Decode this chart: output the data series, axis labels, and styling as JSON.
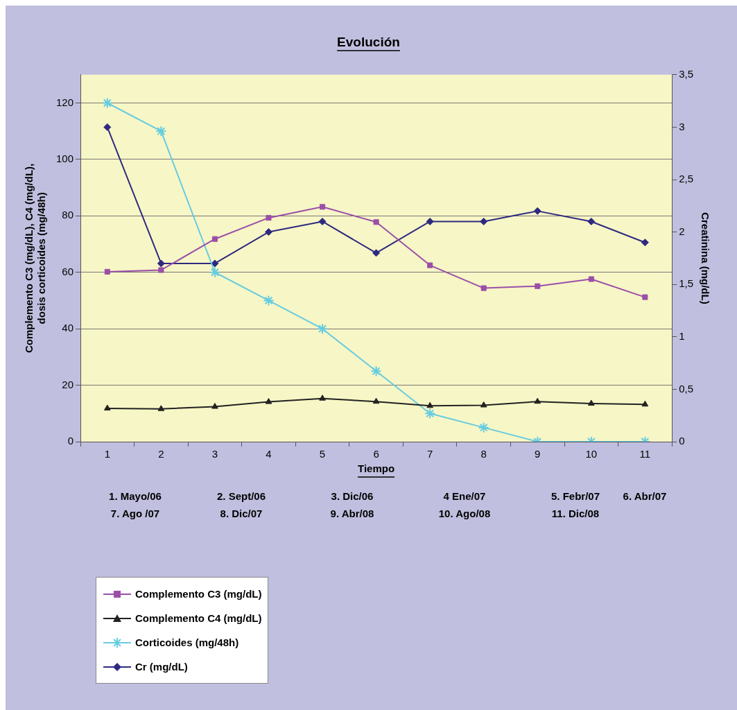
{
  "chart_data": {
    "type": "line",
    "title": "Evolución",
    "xlabel": "Tiempo",
    "ylabel": "Complemento C3 (mg/dL), C4 (mg/dL), dosis corticoides (mg/48h)",
    "y2label": "Creatinina (mg/dL)",
    "categories": [
      "1",
      "2",
      "3",
      "4",
      "5",
      "6",
      "7",
      "8",
      "9",
      "10",
      "11"
    ],
    "series": [
      {
        "name": "Complemento C3 (mg/dL)",
        "color": "#9b4fa8",
        "marker": "square",
        "values": [
          60.2,
          60.8,
          71.8,
          79.3,
          83.2,
          77.8,
          62.5,
          54.4,
          55.1,
          57.6,
          51.2
        ]
      },
      {
        "name": "Complemento C4 (mg/dL)",
        "color": "#222222",
        "marker": "triangle",
        "values": [
          11.8,
          11.6,
          12.4,
          14.1,
          15.3,
          14.2,
          12.7,
          12.9,
          14.2,
          13.5,
          13.2
        ]
      },
      {
        "name": "Corticoides (mg/48h)",
        "color": "#66cce0",
        "marker": "cross",
        "values": [
          120,
          110,
          60,
          50,
          40,
          25,
          10,
          5,
          0,
          0,
          0
        ]
      },
      {
        "name": "Cr (mg/dL)",
        "color": "#2e2a80",
        "marker": "diamond",
        "axis": "y2",
        "values": [
          3.0,
          1.7,
          1.7,
          2.0,
          2.1,
          1.8,
          2.1,
          2.1,
          2.2,
          2.1,
          1.9
        ]
      }
    ],
    "ylim": [
      0,
      130
    ],
    "yticks": [
      0,
      20,
      40,
      60,
      80,
      100,
      120
    ],
    "y2lim": [
      0,
      3.5
    ],
    "y2ticks": [
      {
        "value": 0,
        "label": "0"
      },
      {
        "value": 0.5,
        "label": "0,5"
      },
      {
        "value": 1,
        "label": "1"
      },
      {
        "value": 1.5,
        "label": "1,5"
      },
      {
        "value": 2,
        "label": "2"
      },
      {
        "value": 2.5,
        "label": "2,5"
      },
      {
        "value": 3,
        "label": "3"
      },
      {
        "value": 3.5,
        "label": "3,5"
      }
    ],
    "grid": "y",
    "legend": "bottom left",
    "line_style": "solid",
    "annotations": [
      "1. Mayo/06",
      "2. Sept/06",
      "3. Dic/06",
      "4 Ene/07",
      "5. Febr/07",
      "6. Abr/07",
      "7. Ago /07",
      "8. Dic/07",
      "9. Abr/08",
      "10. Ago/08",
      "11. Dic/08"
    ]
  }
}
